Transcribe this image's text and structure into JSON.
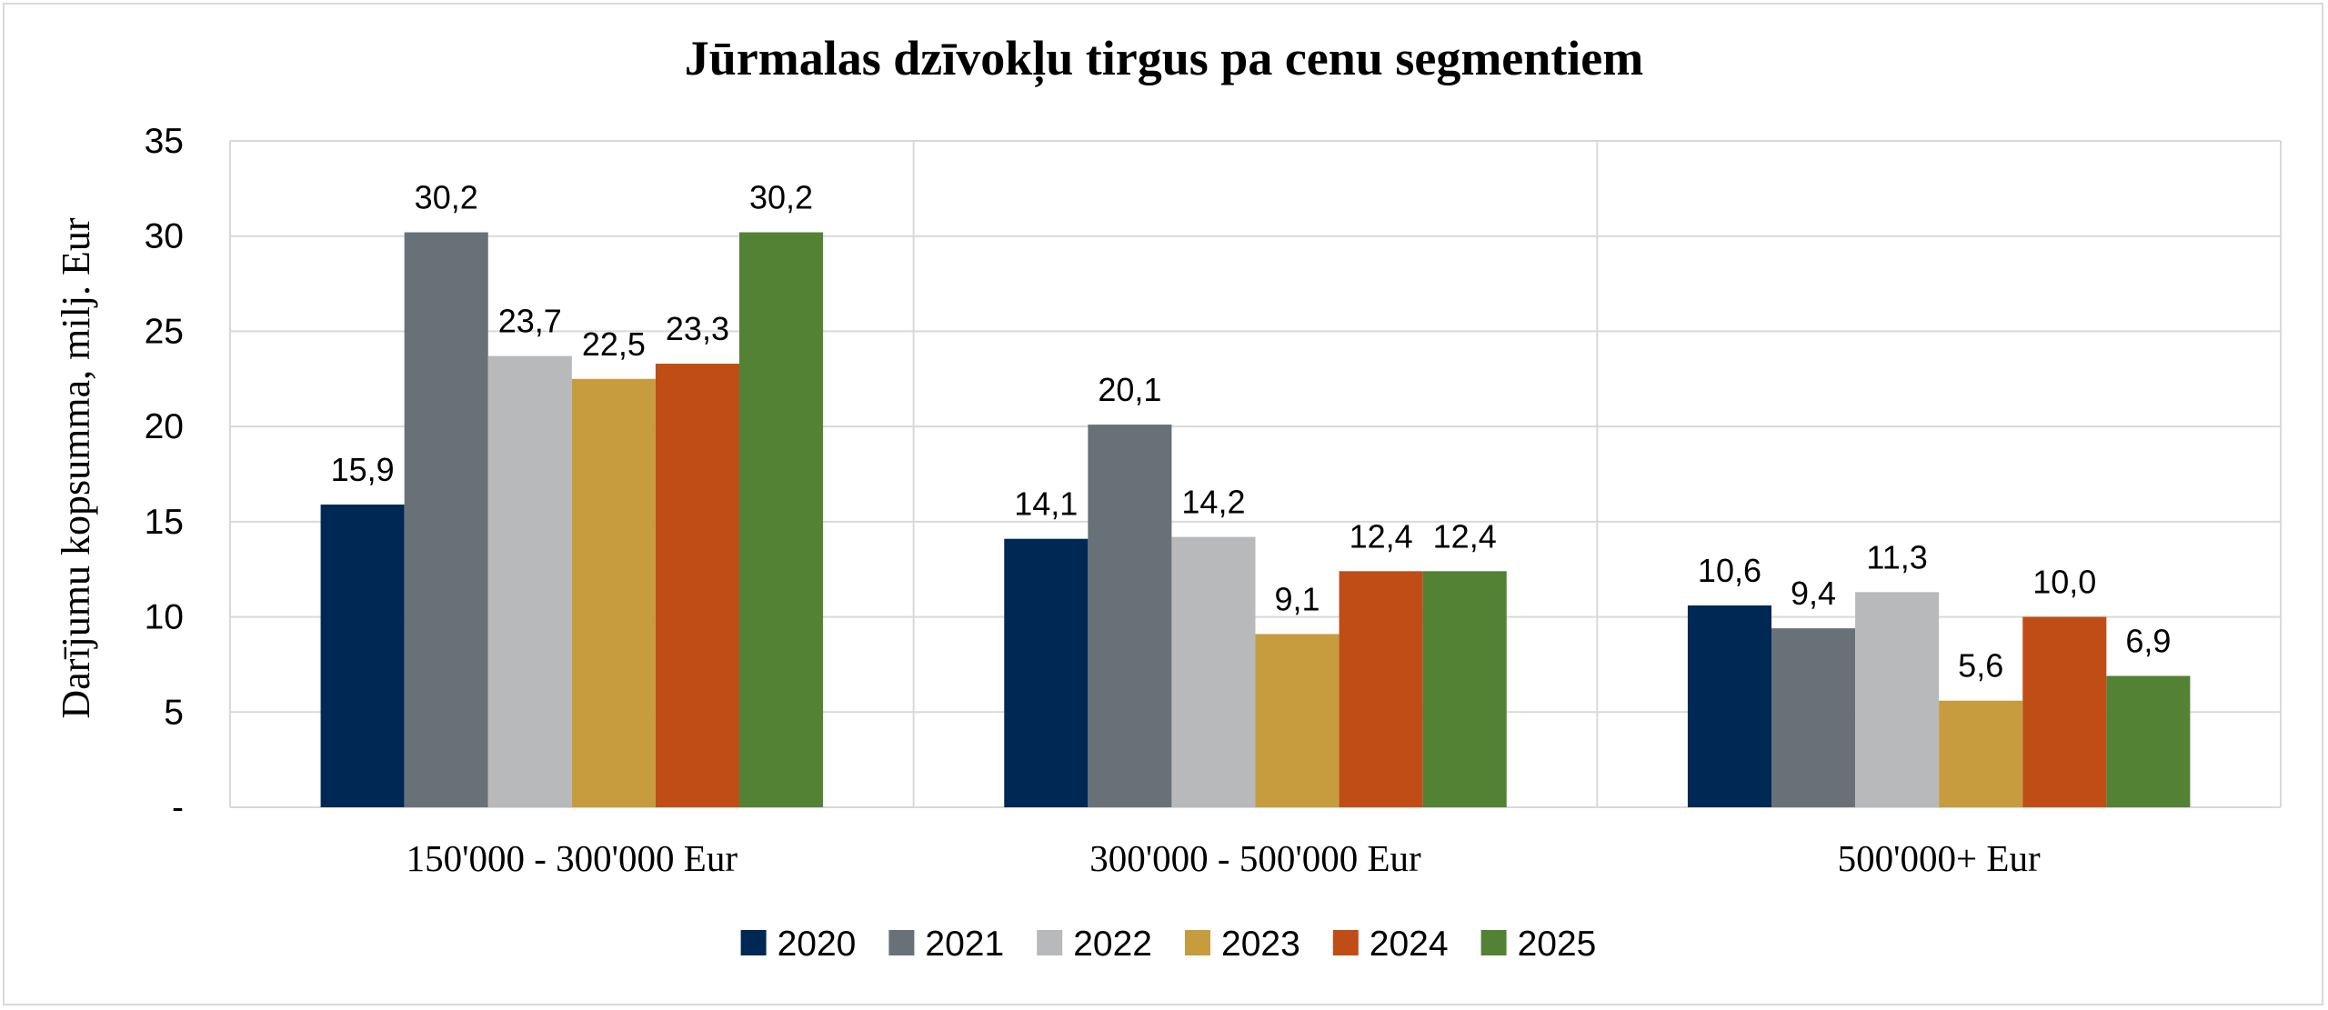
{
  "chart_data": {
    "type": "bar",
    "title": "Jūrmalas dzīvokļu tirgus pa cenu segmentiem",
    "ylabel": "Darījumu kopsumma, milj. Eur",
    "xlabel": "",
    "categories": [
      "150'000 - 300'000 Eur",
      "300'000 - 500'000 Eur",
      "500'000+ Eur"
    ],
    "ylim": [
      0,
      35
    ],
    "yticks": [
      0,
      5,
      10,
      15,
      20,
      25,
      30,
      35
    ],
    "ytick_labels": [
      "-",
      "5",
      "10",
      "15",
      "20",
      "25",
      "30",
      "35"
    ],
    "grid": "on",
    "legend_position": "bottom",
    "series": [
      {
        "name": "2020",
        "color": "#002855",
        "values": [
          15.9,
          14.1,
          10.6
        ],
        "labels": [
          "15,9",
          "14,1",
          "10,6"
        ]
      },
      {
        "name": "2021",
        "color": "#697178",
        "values": [
          30.2,
          20.1,
          9.4
        ],
        "labels": [
          "30,2",
          "20,1",
          "9,4"
        ]
      },
      {
        "name": "2022",
        "color": "#b8b9bb",
        "values": [
          23.7,
          14.2,
          11.3
        ],
        "labels": [
          "23,7",
          "14,2",
          "11,3"
        ]
      },
      {
        "name": "2023",
        "color": "#c79c3e",
        "values": [
          22.5,
          9.1,
          5.6
        ],
        "labels": [
          "22,5",
          "9,1",
          "5,6"
        ]
      },
      {
        "name": "2024",
        "color": "#c04d16",
        "values": [
          23.3,
          12.4,
          10.0
        ],
        "labels": [
          "23,3",
          "12,4",
          "10,0"
        ]
      },
      {
        "name": "2025",
        "color": "#548235",
        "values": [
          30.2,
          12.4,
          6.9
        ],
        "labels": [
          "30,2",
          "12,4",
          "6,9"
        ]
      }
    ]
  },
  "colors": {
    "gridline": "#d9d9d9",
    "frame": "#d9d9d9",
    "text": "#000000"
  }
}
